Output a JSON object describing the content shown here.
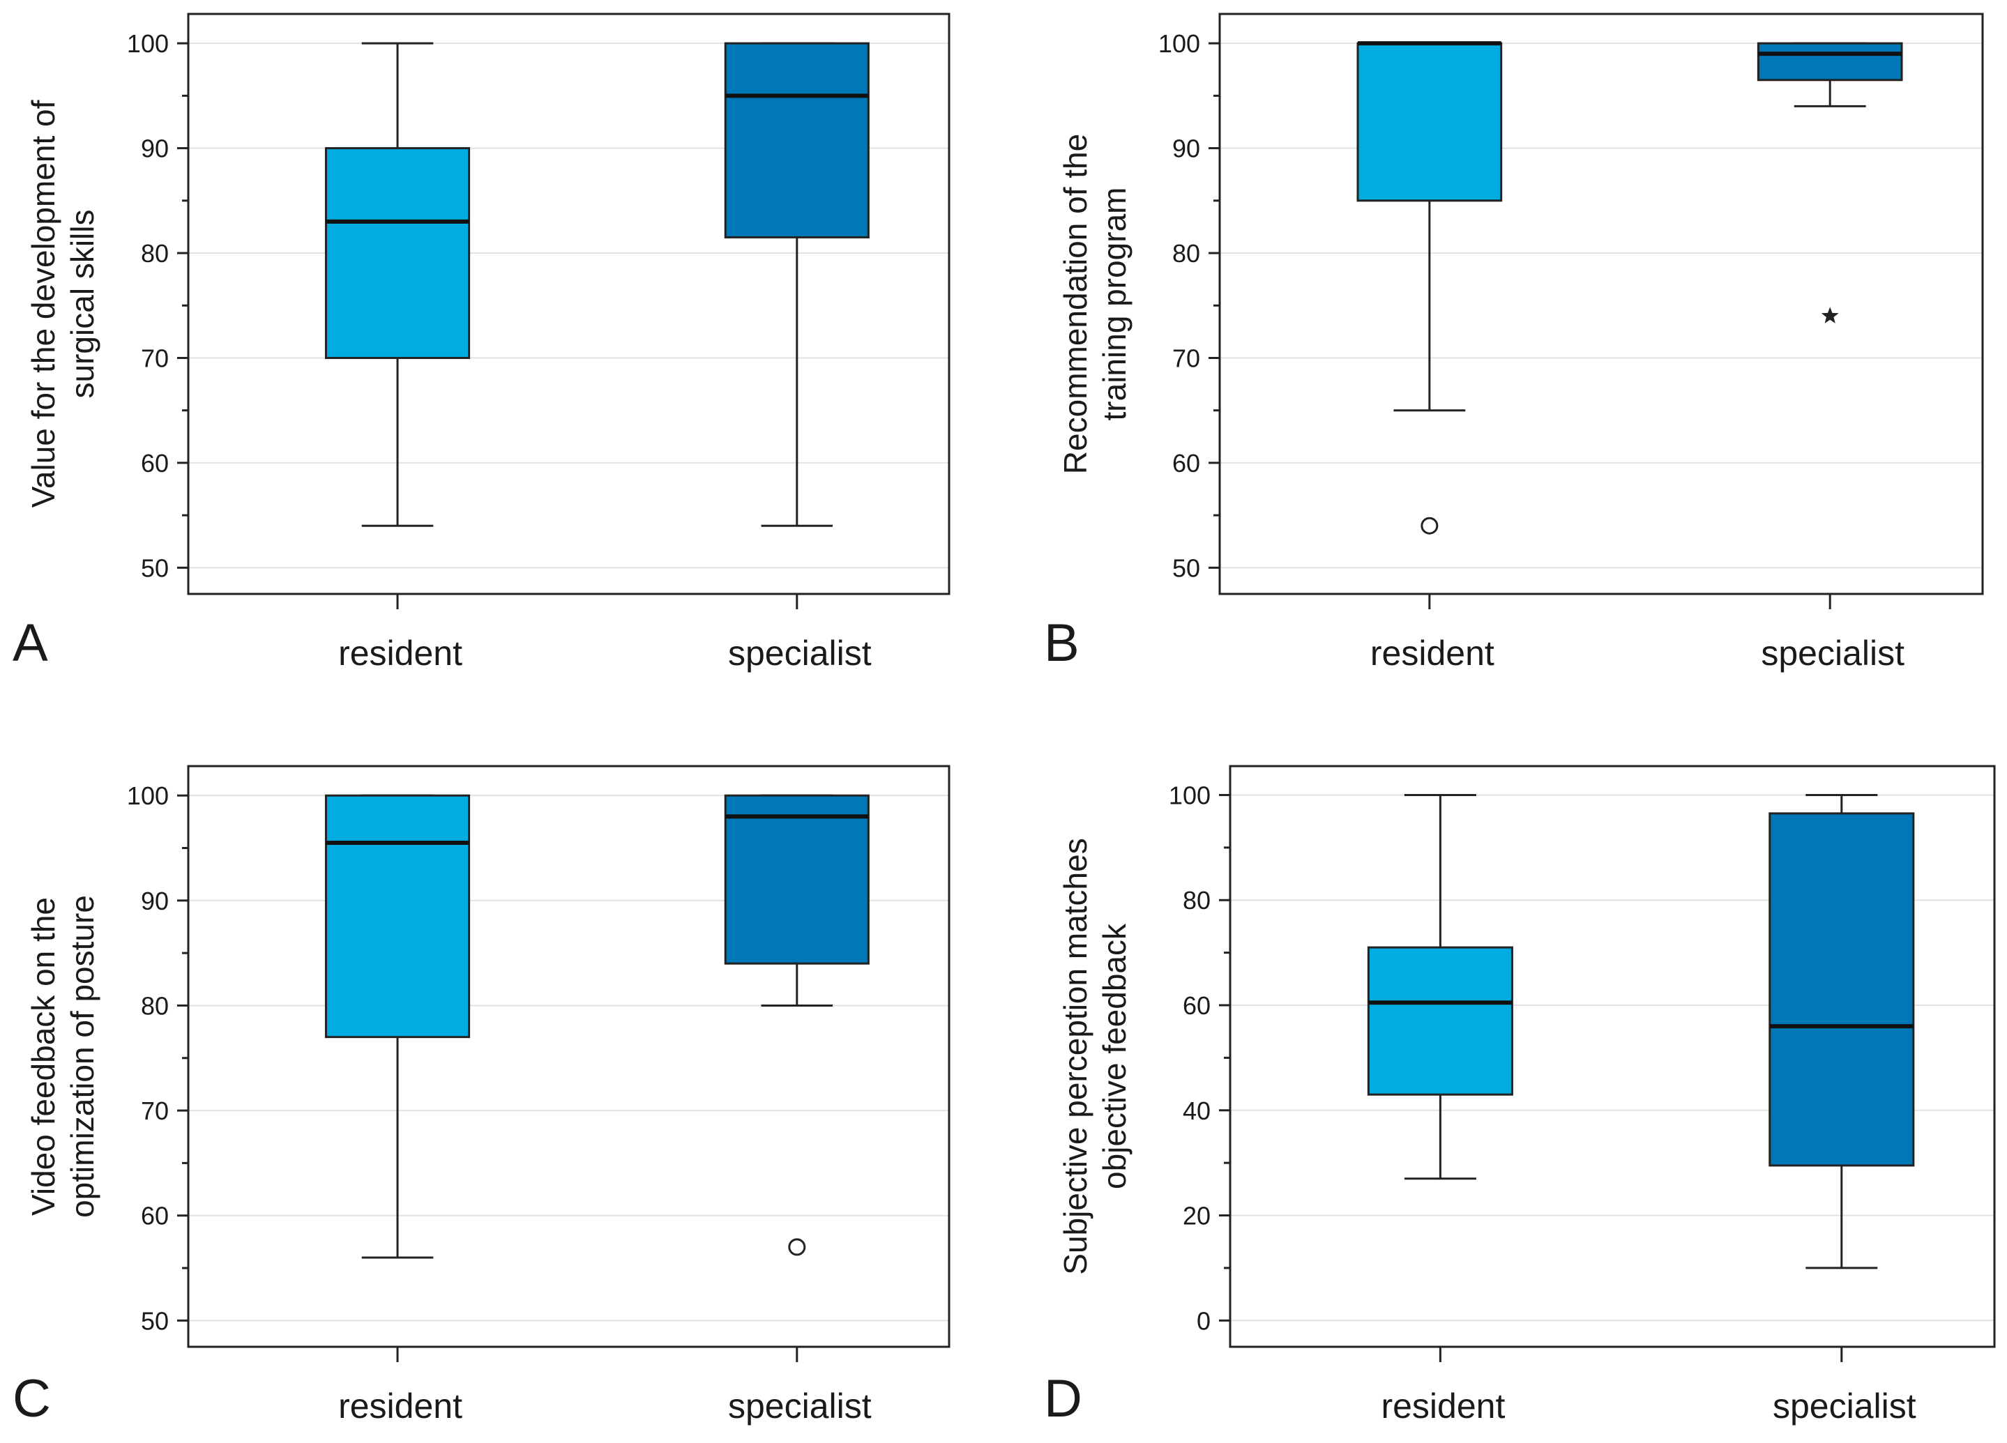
{
  "colors": {
    "resident": "#00ACE0",
    "specialist": "#0077B6",
    "frame": "#222222",
    "grid": "#e2e2e2",
    "median": "#111111"
  },
  "chart_data": [
    {
      "panel": "A",
      "type": "boxplot",
      "ylabel": [
        "Value for the development of",
        "surgical skills"
      ],
      "categories": [
        "resident",
        "specialist"
      ],
      "ylim": [
        47.5,
        102.8
      ],
      "yticks": [
        50,
        60,
        70,
        80,
        90,
        100
      ],
      "yticks_minor": [
        55,
        65,
        75,
        85,
        95
      ],
      "boxes": [
        {
          "name": "resident",
          "min": 54,
          "q1": 70,
          "median": 83,
          "q3": 90,
          "max": 100,
          "outliers": [],
          "extremes": []
        },
        {
          "name": "specialist",
          "min": 54,
          "q1": 81.5,
          "median": 95,
          "q3": 100,
          "max": 100,
          "outliers": [],
          "extremes": []
        }
      ]
    },
    {
      "panel": "B",
      "type": "boxplot",
      "ylabel": [
        "Recommendation of the",
        "training program"
      ],
      "categories": [
        "resident",
        "specialist"
      ],
      "ylim": [
        47.5,
        102.8
      ],
      "yticks": [
        50,
        60,
        70,
        80,
        90,
        100
      ],
      "yticks_minor": [
        55,
        65,
        75,
        85,
        95
      ],
      "boxes": [
        {
          "name": "resident",
          "min": 65,
          "q1": 85,
          "median": 100,
          "q3": 100,
          "max": 100,
          "outliers": [
            54
          ],
          "extremes": []
        },
        {
          "name": "specialist",
          "min": 94,
          "q1": 96.5,
          "median": 99,
          "q3": 100,
          "max": 100,
          "outliers": [],
          "extremes": [
            74
          ]
        }
      ]
    },
    {
      "panel": "C",
      "type": "boxplot",
      "ylabel": [
        "Video feedback on the",
        "optimization of posture"
      ],
      "categories": [
        "resident",
        "specialist"
      ],
      "ylim": [
        47.5,
        102.8
      ],
      "yticks": [
        50,
        60,
        70,
        80,
        90,
        100
      ],
      "yticks_minor": [
        55,
        65,
        75,
        85,
        95
      ],
      "boxes": [
        {
          "name": "resident",
          "min": 56,
          "q1": 77,
          "median": 95.5,
          "q3": 100,
          "max": 100,
          "outliers": [],
          "extremes": []
        },
        {
          "name": "specialist",
          "min": 80,
          "q1": 84,
          "median": 98,
          "q3": 100,
          "max": 100,
          "outliers": [
            57
          ],
          "extremes": []
        }
      ]
    },
    {
      "panel": "D",
      "type": "boxplot",
      "ylabel": [
        "Subjective perception matches",
        "objective feedback"
      ],
      "categories": [
        "resident",
        "specialist"
      ],
      "ylim": [
        -5,
        105.5
      ],
      "yticks": [
        0,
        20,
        40,
        60,
        80,
        100
      ],
      "yticks_minor": [
        10,
        30,
        50,
        70,
        90
      ],
      "boxes": [
        {
          "name": "resident",
          "min": 27,
          "q1": 43,
          "median": 60.5,
          "q3": 71,
          "max": 100,
          "outliers": [],
          "extremes": []
        },
        {
          "name": "specialist",
          "min": 10,
          "q1": 29.5,
          "median": 56,
          "q3": 96.5,
          "max": 100,
          "outliers": [],
          "extremes": []
        }
      ]
    }
  ]
}
